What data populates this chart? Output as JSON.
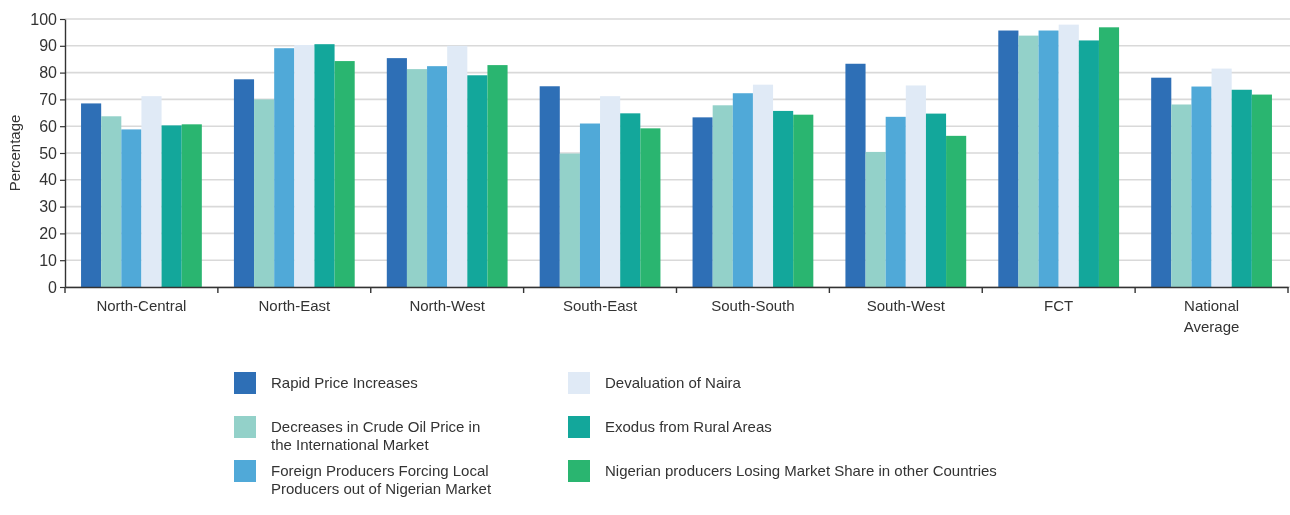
{
  "chart_data": {
    "type": "bar",
    "ylabel": "Percentage",
    "categories": [
      "North-Central",
      "North-East",
      "North-West",
      "South-East",
      "South-South",
      "South-West",
      "FCT",
      "National Average"
    ],
    "series": [
      {
        "name": "Rapid Price Increases",
        "color": "#2e6fb6",
        "values": [
          68.5,
          77.5,
          85.4,
          74.9,
          63.3,
          83.3,
          95.7,
          78.1
        ]
      },
      {
        "name": "Decreases in Crude Oil Price in the International Market",
        "color": "#93d1c9",
        "values": [
          63.7,
          70.0,
          81.3,
          49.8,
          67.8,
          50.4,
          93.8,
          68.1
        ]
      },
      {
        "name": "Foreign Producers Forcing Local Producers out of Nigerian Market",
        "color": "#50a9d8",
        "values": [
          58.8,
          89.1,
          82.4,
          61.0,
          72.3,
          63.5,
          95.7,
          74.8
        ]
      },
      {
        "name": "Devaluation of Naira",
        "color": "#e0eaf6",
        "values": [
          71.2,
          90.3,
          90.0,
          71.2,
          75.5,
          75.2,
          97.9,
          81.5
        ]
      },
      {
        "name": "Exodus from Rural Areas",
        "color": "#13a79b",
        "values": [
          60.3,
          90.6,
          79.0,
          64.8,
          65.7,
          64.7,
          92.0,
          73.6
        ]
      },
      {
        "name": "Nigerian producers Losing Market Share in other Countries",
        "color": "#2ab570",
        "values": [
          60.7,
          84.3,
          82.8,
          59.2,
          64.3,
          56.4,
          96.9,
          71.8
        ]
      }
    ],
    "ylim": [
      0,
      100
    ],
    "yticks": [
      0,
      10,
      20,
      30,
      40,
      50,
      60,
      70,
      80,
      90,
      100
    ],
    "grid": "y",
    "legend": "bottom"
  }
}
